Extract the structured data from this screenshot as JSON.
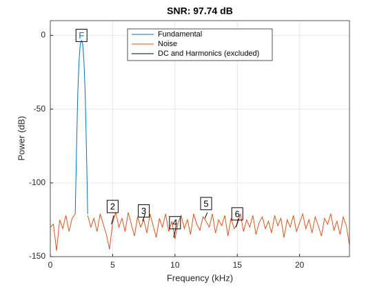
{
  "chart_data": {
    "type": "line",
    "title": "SNR:  97.74 dB",
    "x_label": "Frequency (kHz)",
    "y_label": "Power (dB)",
    "xlim": [
      0,
      24
    ],
    "ylim": [
      -150,
      10
    ],
    "xticks": [
      0,
      5,
      10,
      15,
      20
    ],
    "yticks": [
      -150,
      -100,
      -50,
      0
    ],
    "grid": true,
    "legend_location": "north",
    "series": [
      {
        "name": "Fundamental",
        "color": "#0072BD",
        "x": [
          2.0,
          2.1,
          2.2,
          2.3,
          2.4,
          2.5,
          2.6,
          2.7,
          2.8,
          2.9,
          3.0
        ],
        "values": [
          -121,
          -78,
          -40,
          -18,
          -6,
          -3.5,
          -6,
          -18,
          -40,
          -78,
          -121
        ]
      },
      {
        "name": "Noise",
        "color": "#D95319",
        "x": [
          0,
          0.25,
          0.5,
          0.75,
          1,
          1.25,
          1.5,
          1.75,
          2,
          2.25,
          2.5,
          2.75,
          3,
          3.25,
          3.5,
          3.75,
          4,
          4.25,
          4.5,
          4.75,
          5,
          5.25,
          5.5,
          5.75,
          6,
          6.25,
          6.5,
          6.75,
          7,
          7.25,
          7.5,
          7.75,
          8,
          8.25,
          8.5,
          8.75,
          9,
          9.25,
          9.5,
          9.75,
          10,
          10.25,
          10.5,
          10.75,
          11,
          11.25,
          11.5,
          11.75,
          12,
          12.25,
          12.5,
          12.75,
          13,
          13.25,
          13.5,
          13.75,
          14,
          14.25,
          14.5,
          14.75,
          15,
          15.25,
          15.5,
          15.75,
          16,
          16.25,
          16.5,
          16.75,
          17,
          17.25,
          17.5,
          17.75,
          18,
          18.25,
          18.5,
          18.75,
          19,
          19.25,
          19.5,
          19.75,
          20,
          20.25,
          20.5,
          20.75,
          21,
          21.25,
          21.5,
          21.75,
          22,
          22.25,
          22.5,
          22.75,
          23,
          23.25,
          23.5,
          23.75,
          24
        ],
        "values": [
          -130,
          -128,
          -146,
          -125,
          -131,
          -122,
          -133,
          -124,
          -121,
          null,
          null,
          null,
          -122,
          -130,
          -124,
          -133,
          -121,
          -128,
          -135,
          -145,
          -127,
          -120,
          -130,
          -124,
          -133,
          -120,
          -128,
          -136,
          -123,
          -130,
          -125,
          -134,
          -121,
          -129,
          -137,
          -124,
          -130,
          -121,
          -133,
          -126,
          -138,
          -127,
          -122,
          -131,
          -125,
          -135,
          -121,
          -128,
          -132,
          -123,
          -126,
          -130,
          -121,
          -134,
          -125,
          -129,
          -122,
          -136,
          -124,
          -131,
          -128,
          -121,
          -133,
          -125,
          -130,
          -122,
          -135,
          -127,
          -123,
          -131,
          -126,
          -134,
          -122,
          -129,
          -124,
          -137,
          -125,
          -130,
          -122,
          -133,
          -127,
          -121,
          -131,
          -125,
          -134,
          -123,
          -129,
          -136,
          -124,
          -128,
          -121,
          -132,
          -126,
          -135,
          -123,
          -129,
          -142
        ]
      },
      {
        "name": "DC and Harmonics (excluded)",
        "color": "#000000",
        "x": [
          4.9,
          5.1,
          5.2,
          7.4,
          7.6,
          7.7,
          9.9,
          10.1,
          10.2,
          12.4,
          12.6,
          12.7,
          14.9,
          15.1
        ],
        "values": [
          -128,
          -122,
          null,
          -126,
          -121,
          null,
          -137,
          -129,
          null,
          -124,
          -120,
          null,
          -130,
          -124
        ]
      }
    ],
    "markers": [
      {
        "label": "F",
        "x": 2.5,
        "y": 0
      },
      {
        "label": "2",
        "x": 5,
        "y": -116
      },
      {
        "label": "3",
        "x": 7.5,
        "y": -119
      },
      {
        "label": "4",
        "x": 10,
        "y": -127
      },
      {
        "label": "5",
        "x": 12.5,
        "y": -114
      },
      {
        "label": "6",
        "x": 15,
        "y": -121
      }
    ]
  }
}
